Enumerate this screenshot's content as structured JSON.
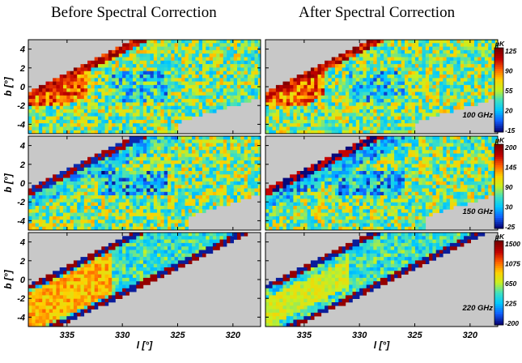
{
  "titles": {
    "left": "Before Spectral Correction",
    "right": "After Spectral Correction"
  },
  "axes": {
    "ylabel": "b [°]",
    "xlabel": "l [°]",
    "yticks": [
      "4",
      "2",
      "0",
      "-2",
      "-4"
    ],
    "xticks": [
      "335",
      "330",
      "325",
      "320"
    ]
  },
  "chart_data": {
    "type": "heatmap",
    "x_range": [
      338.5,
      317.5
    ],
    "y_range": [
      -5,
      5
    ],
    "unit": "μK",
    "colormap": [
      "#08087a",
      "#1060ff",
      "#00c8ff",
      "#40e0c0",
      "#c8f020",
      "#ffd000",
      "#ff6000",
      "#c00000",
      "#780000"
    ],
    "missing_color": "#c8c8c8",
    "rows": [
      {
        "frequency": "100 GHz",
        "colorbar_ticks": [
          "125",
          "90",
          "55",
          "20",
          "-15"
        ],
        "range": [
          -15,
          125
        ]
      },
      {
        "frequency": "150 GHz",
        "colorbar_ticks": [
          "200",
          "145",
          "90",
          "30",
          "-25"
        ],
        "range": [
          -25,
          200
        ]
      },
      {
        "frequency": "220 GHz",
        "colorbar_ticks": [
          "1500",
          "1075",
          "650",
          "225",
          "-200"
        ],
        "range": [
          -200,
          1500
        ]
      }
    ],
    "panels": [
      "Before Spectral Correction",
      "After Spectral Correction"
    ]
  }
}
